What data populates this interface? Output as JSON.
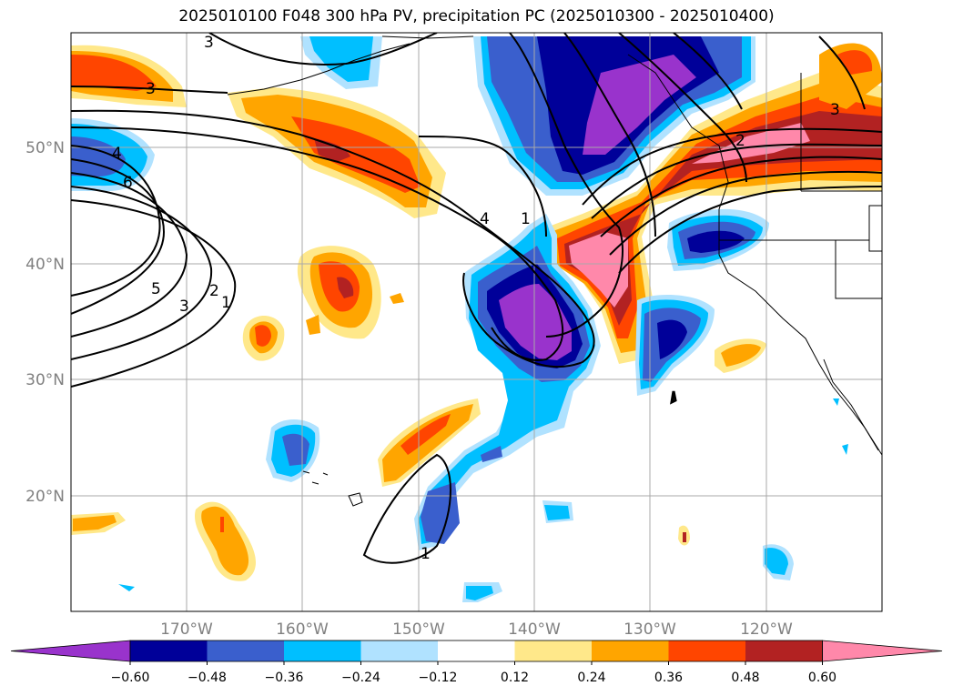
{
  "title": "2025010100 F048 300 hPa PV, precipitation PC (2025010300 - 2025010400)",
  "map": {
    "lat_labels": [
      "50°N",
      "40°N",
      "30°N",
      "20°N"
    ],
    "lon_labels": [
      "170°W",
      "160°W",
      "150°W",
      "140°W",
      "130°W",
      "120°W"
    ],
    "contour_labels": [
      "3",
      "3",
      "4",
      "6",
      "5",
      "3",
      "2",
      "1",
      "2",
      "3",
      "4",
      "1",
      "1"
    ]
  },
  "colorbar": {
    "ticks": [
      "−0.60",
      "−0.48",
      "−0.36",
      "−0.24",
      "−0.12",
      "0.12",
      "0.24",
      "0.36",
      "0.48",
      "0.60"
    ],
    "colors": [
      "#9933cc",
      "#000099",
      "#3a5fcd",
      "#00bfff",
      "#b0e2ff",
      "#ffffff",
      "#ffe88a",
      "#ffa500",
      "#ff4500",
      "#b22222",
      "#ff88aa"
    ]
  }
}
